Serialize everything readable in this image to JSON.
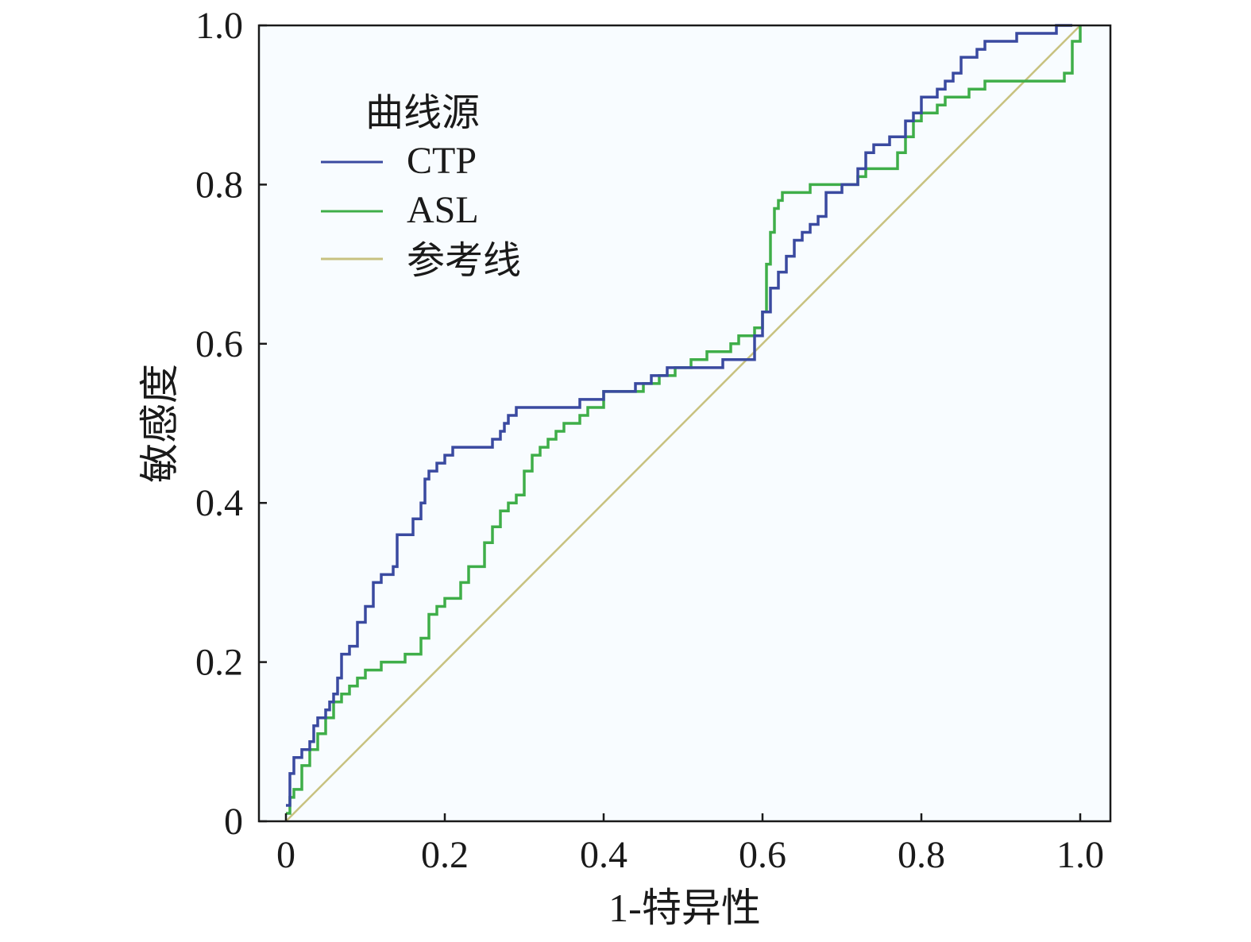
{
  "chart_data": {
    "type": "line",
    "title": "",
    "xlabel": "1-特异性",
    "ylabel": "敏感度",
    "xlim": [
      0,
      1.0
    ],
    "ylim": [
      0,
      1.0
    ],
    "x_ticks": [
      "0",
      "0.2",
      "0.4",
      "0.6",
      "0.8",
      "1.0"
    ],
    "y_ticks": [
      "0",
      "0.2",
      "0.4",
      "0.6",
      "0.8",
      "1.0"
    ],
    "grid": false,
    "legend": {
      "title": "曲线源",
      "placement": "top-left"
    },
    "plot_background": "#f8fcff",
    "series": [
      {
        "name": "CTP",
        "color": "#3a4aa0",
        "step": true,
        "x": [
          0,
          0.005,
          0.01,
          0.02,
          0.03,
          0.035,
          0.04,
          0.05,
          0.055,
          0.06,
          0.065,
          0.07,
          0.08,
          0.09,
          0.1,
          0.11,
          0.12,
          0.135,
          0.14,
          0.16,
          0.17,
          0.175,
          0.18,
          0.19,
          0.2,
          0.21,
          0.22,
          0.25,
          0.26,
          0.27,
          0.275,
          0.28,
          0.29,
          0.3,
          0.37,
          0.4,
          0.44,
          0.46,
          0.48,
          0.5,
          0.55,
          0.58,
          0.59,
          0.6,
          0.61,
          0.62,
          0.63,
          0.64,
          0.65,
          0.66,
          0.67,
          0.68,
          0.7,
          0.72,
          0.73,
          0.74,
          0.76,
          0.78,
          0.79,
          0.8,
          0.82,
          0.83,
          0.84,
          0.85,
          0.87,
          0.88,
          0.9,
          0.92,
          0.94,
          0.97,
          0.98,
          0.99
        ],
        "y": [
          0.02,
          0.06,
          0.08,
          0.09,
          0.1,
          0.12,
          0.13,
          0.14,
          0.15,
          0.16,
          0.18,
          0.21,
          0.22,
          0.25,
          0.27,
          0.3,
          0.31,
          0.32,
          0.36,
          0.38,
          0.4,
          0.43,
          0.44,
          0.45,
          0.46,
          0.47,
          0.47,
          0.47,
          0.48,
          0.49,
          0.5,
          0.51,
          0.52,
          0.52,
          0.53,
          0.54,
          0.55,
          0.56,
          0.57,
          0.57,
          0.58,
          0.58,
          0.61,
          0.64,
          0.67,
          0.69,
          0.71,
          0.73,
          0.74,
          0.75,
          0.76,
          0.79,
          0.8,
          0.82,
          0.84,
          0.85,
          0.86,
          0.88,
          0.89,
          0.91,
          0.92,
          0.93,
          0.94,
          0.96,
          0.97,
          0.98,
          0.98,
          0.99,
          0.99,
          1.0,
          1.0,
          1.0
        ]
      },
      {
        "name": "ASL",
        "color": "#3fae49",
        "step": true,
        "x": [
          0,
          0.005,
          0.01,
          0.02,
          0.03,
          0.04,
          0.05,
          0.06,
          0.07,
          0.08,
          0.09,
          0.1,
          0.12,
          0.15,
          0.17,
          0.18,
          0.19,
          0.2,
          0.22,
          0.23,
          0.25,
          0.26,
          0.27,
          0.28,
          0.29,
          0.3,
          0.31,
          0.32,
          0.33,
          0.34,
          0.35,
          0.37,
          0.38,
          0.4,
          0.45,
          0.47,
          0.49,
          0.51,
          0.53,
          0.55,
          0.56,
          0.57,
          0.58,
          0.59,
          0.6,
          0.605,
          0.61,
          0.615,
          0.62,
          0.625,
          0.63,
          0.66,
          0.7,
          0.72,
          0.73,
          0.75,
          0.77,
          0.78,
          0.79,
          0.8,
          0.82,
          0.83,
          0.86,
          0.88,
          0.9,
          0.98,
          0.99,
          1.0
        ],
        "y": [
          0.01,
          0.03,
          0.04,
          0.07,
          0.09,
          0.11,
          0.13,
          0.15,
          0.16,
          0.17,
          0.18,
          0.19,
          0.2,
          0.21,
          0.23,
          0.26,
          0.27,
          0.28,
          0.3,
          0.32,
          0.35,
          0.37,
          0.39,
          0.4,
          0.41,
          0.44,
          0.46,
          0.47,
          0.48,
          0.49,
          0.5,
          0.51,
          0.52,
          0.54,
          0.55,
          0.56,
          0.57,
          0.58,
          0.59,
          0.59,
          0.6,
          0.61,
          0.61,
          0.62,
          0.64,
          0.7,
          0.74,
          0.77,
          0.78,
          0.79,
          0.79,
          0.8,
          0.8,
          0.81,
          0.82,
          0.82,
          0.84,
          0.86,
          0.88,
          0.89,
          0.9,
          0.91,
          0.92,
          0.93,
          0.93,
          0.94,
          0.98,
          1.0
        ]
      },
      {
        "name": "参考线",
        "color": "#c8c280",
        "step": false,
        "x": [
          0,
          1.0
        ],
        "y": [
          0,
          1.0
        ]
      }
    ]
  }
}
